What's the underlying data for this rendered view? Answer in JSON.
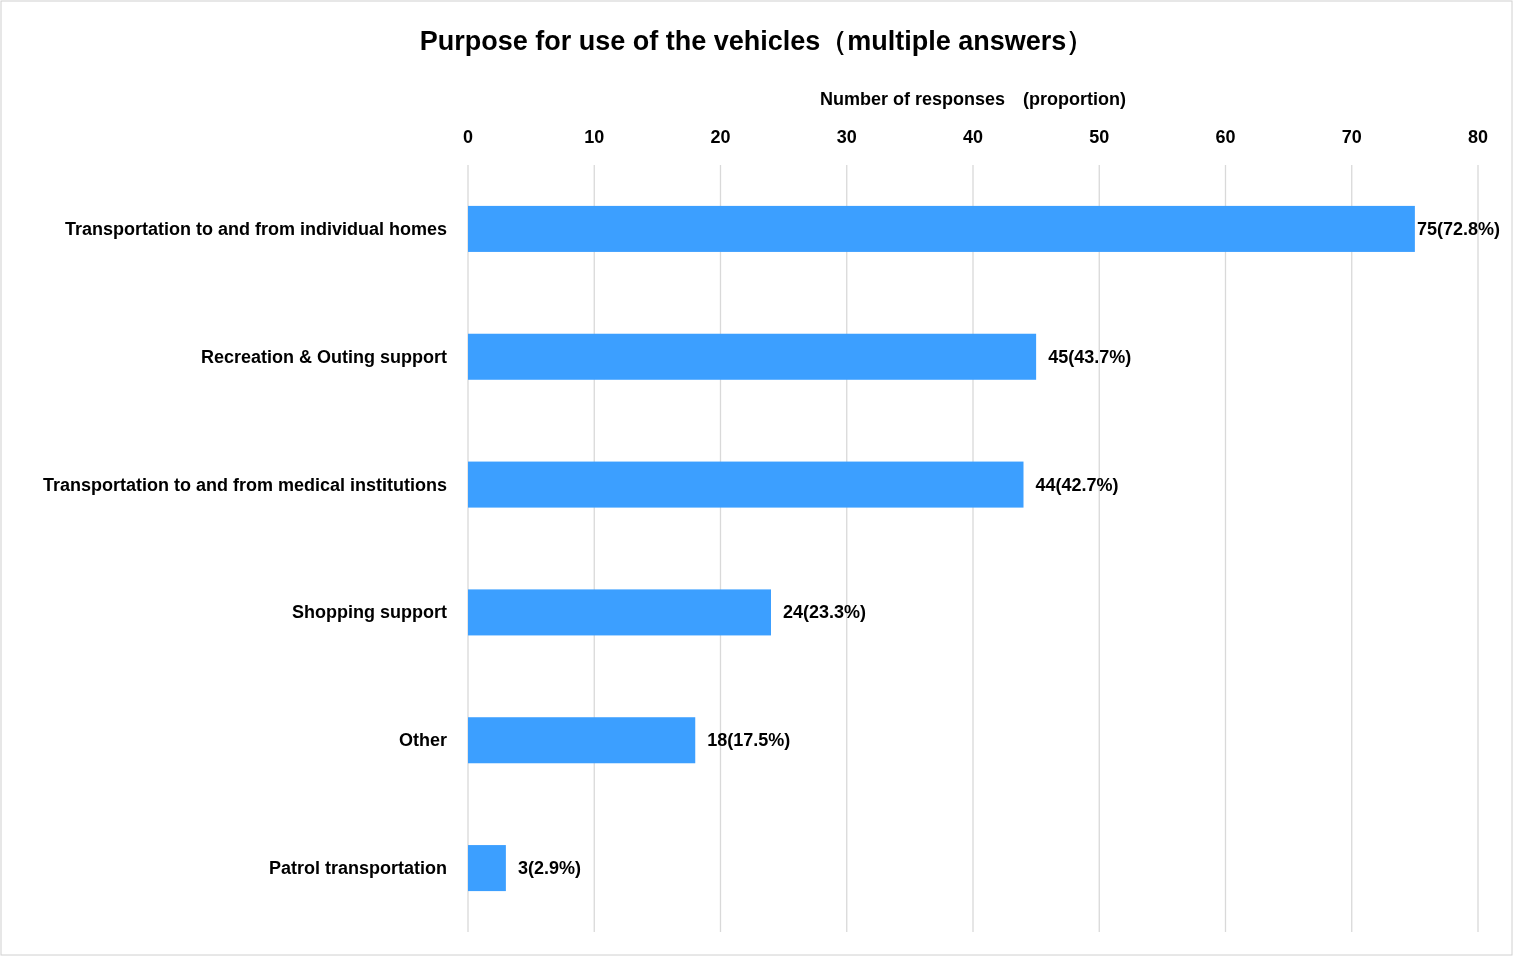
{
  "chart_data": {
    "type": "bar",
    "orientation": "horizontal",
    "title": "Purpose for use of the vehicles（multiple answers）",
    "xlabel": "Number of responses　(proportion)",
    "categories": [
      "Transportation to and from individual homes",
      "Recreation & Outing support",
      "Transportation to and from medical institutions",
      "Shopping support",
      "Other",
      "Patrol transportation"
    ],
    "values": [
      75,
      45,
      44,
      24,
      18,
      3
    ],
    "value_labels": [
      "75(72.8%)",
      "45(43.7%)",
      "44(42.7%)",
      "24(23.3%)",
      "18(17.5%)",
      "3(2.9%)"
    ],
    "color": "#3c9fff",
    "xlim": [
      0,
      80
    ],
    "xticks": [
      0,
      10,
      20,
      30,
      40,
      50,
      60,
      70,
      80
    ],
    "grid": "x"
  }
}
